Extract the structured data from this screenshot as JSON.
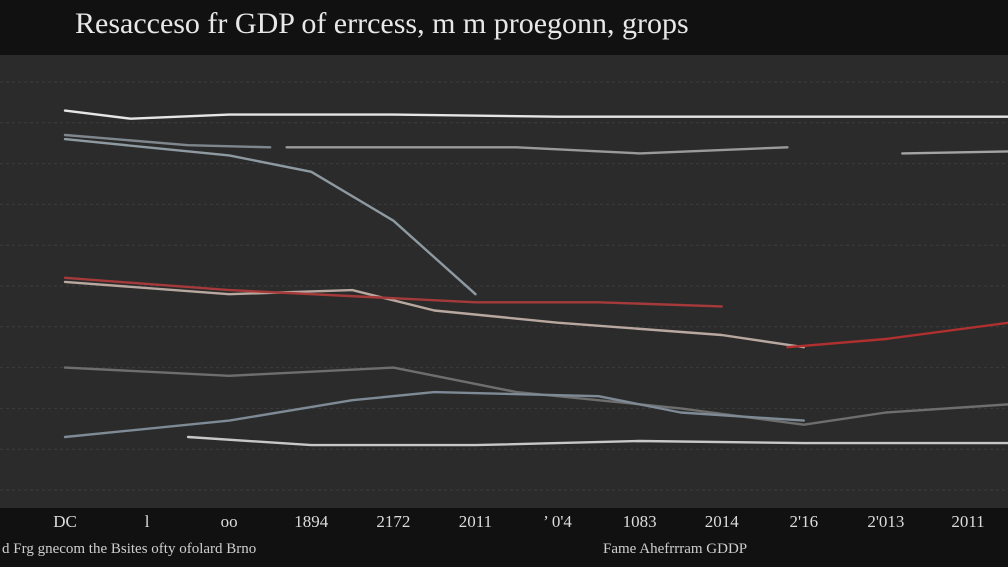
{
  "chart_data": {
    "type": "line",
    "title": "Resacceso fr GDP of errcess, m m proegonn, grops",
    "xlabel": "Fame Ahefrrram GDDP",
    "footnote": "d Frg gnecom the Bsites ofty ofolard Brno",
    "x_tick_labels": [
      "DC",
      "l",
      "oo",
      "1894",
      "2172",
      "2011",
      "’ 0'4",
      "1083",
      "2014",
      "2'16",
      "2'013",
      "2011"
    ],
    "ylim": [
      0,
      100
    ],
    "grid": "horizontal",
    "legend": "none",
    "series": [
      {
        "color": "#e6e6e6",
        "points": [
          [
            0,
            93
          ],
          [
            0.8,
            91
          ],
          [
            2,
            92
          ],
          [
            4,
            92
          ],
          [
            6,
            91.5
          ],
          [
            8,
            91.5
          ],
          [
            10,
            91.5
          ],
          [
            11.5,
            91.5
          ]
        ]
      },
      {
        "color": "#8e9aa2",
        "points": [
          [
            0,
            86
          ],
          [
            1,
            84
          ],
          [
            2,
            82
          ],
          [
            3,
            78
          ],
          [
            4,
            66
          ],
          [
            5,
            48
          ]
        ]
      },
      {
        "color": "#7f878e",
        "points": [
          [
            0,
            87
          ],
          [
            1.5,
            84.5
          ],
          [
            2.5,
            84
          ]
        ]
      },
      {
        "color": "#9a9a9a",
        "points": [
          [
            2.7,
            84
          ],
          [
            4,
            84
          ],
          [
            5.5,
            84
          ],
          [
            7,
            82.5
          ],
          [
            8.8,
            84
          ]
        ]
      },
      {
        "color": "#a4a4a4",
        "points": [
          [
            10.2,
            82.5
          ],
          [
            11.5,
            83
          ]
        ]
      },
      {
        "color": "#b8a8a0",
        "points": [
          [
            0,
            51
          ],
          [
            2,
            48
          ],
          [
            3.5,
            49
          ],
          [
            4.5,
            44
          ],
          [
            6,
            41
          ],
          [
            8,
            38
          ],
          [
            9,
            35
          ]
        ]
      },
      {
        "color": "#a63a3a",
        "points": [
          [
            0,
            52
          ],
          [
            2,
            49
          ],
          [
            4,
            47
          ],
          [
            5,
            46
          ],
          [
            6.5,
            46
          ],
          [
            8,
            45
          ]
        ]
      },
      {
        "color": "#b03030",
        "points": [
          [
            8.8,
            35
          ],
          [
            10,
            37
          ],
          [
            11.5,
            41
          ]
        ]
      },
      {
        "color": "#6e6e6e",
        "points": [
          [
            0,
            30
          ],
          [
            2,
            28
          ],
          [
            4,
            30
          ],
          [
            5.5,
            24
          ],
          [
            7.5,
            20
          ],
          [
            9,
            16
          ],
          [
            10,
            19
          ],
          [
            11.5,
            21
          ]
        ]
      },
      {
        "color": "#7e8a96",
        "points": [
          [
            0,
            13
          ],
          [
            2,
            17
          ],
          [
            3.5,
            22
          ],
          [
            4.5,
            24
          ],
          [
            6.5,
            23
          ],
          [
            7.5,
            19
          ],
          [
            9,
            17
          ]
        ]
      },
      {
        "color": "#c8c8c8",
        "points": [
          [
            1.5,
            13
          ],
          [
            3,
            11
          ],
          [
            5,
            11
          ],
          [
            7,
            12
          ],
          [
            9,
            11.5
          ],
          [
            11.5,
            11.5
          ]
        ]
      }
    ]
  }
}
